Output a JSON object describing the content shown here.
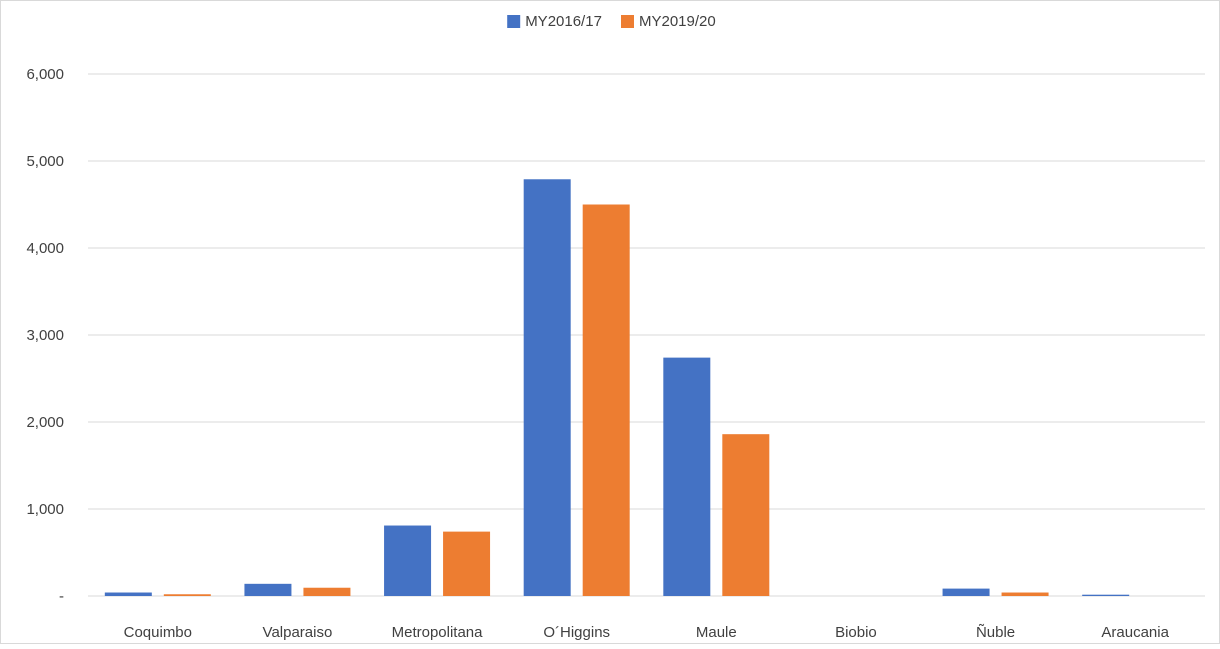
{
  "chart_data": {
    "type": "bar",
    "title": "",
    "xlabel": "",
    "ylabel": "",
    "categories": [
      "Coquimbo",
      "Valparaiso",
      "Metropolitana",
      "O´Higgins",
      "Maule",
      "Biobio",
      "Ñuble",
      "Araucania"
    ],
    "series": [
      {
        "name": "MY2016/17",
        "color": "#4472C4",
        "values": [
          40,
          140,
          810,
          4790,
          2740,
          0,
          85,
          15
        ]
      },
      {
        "name": "MY2019/20",
        "color": "#ED7D31",
        "values": [
          20,
          95,
          740,
          4500,
          1860,
          0,
          40,
          0
        ]
      }
    ],
    "ylim": [
      0,
      6000
    ],
    "yticks": [
      0,
      1000,
      2000,
      3000,
      4000,
      5000,
      6000
    ],
    "ytick_labels": [
      "-",
      "1,000",
      "2,000",
      "3,000",
      "4,000",
      "5,000",
      "6,000"
    ],
    "grid": true,
    "legend_position": "top-center",
    "gridline_color": "#D9D9D9"
  }
}
